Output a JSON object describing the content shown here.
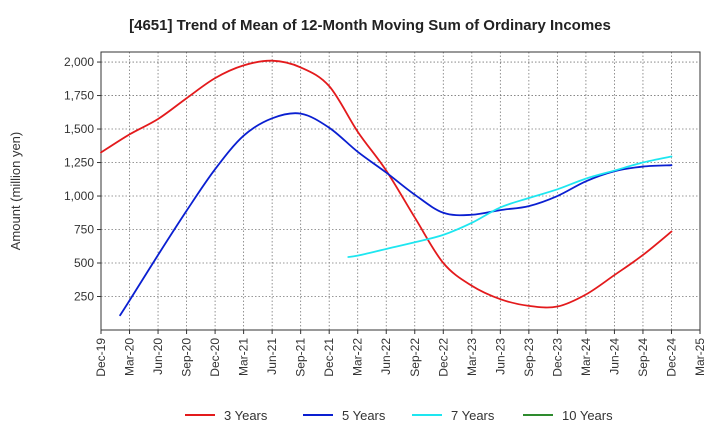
{
  "chart_data": {
    "type": "line",
    "title": "[4651]  Trend of Mean of 12-Month Moving Sum of Ordinary Incomes",
    "xlabel": "",
    "ylabel": "Amount (million yen)",
    "ylim": [
      0,
      2075
    ],
    "yticks": [
      250,
      500,
      750,
      1000,
      1250,
      1500,
      1750,
      2000
    ],
    "ytick_labels": [
      "250",
      "500",
      "750",
      "1,000",
      "1,250",
      "1,500",
      "1,750",
      "2,000"
    ],
    "x_tick_labels": [
      "Dec-19",
      "Mar-20",
      "Jun-20",
      "Sep-20",
      "Dec-20",
      "Mar-21",
      "Jun-21",
      "Sep-21",
      "Dec-21",
      "Mar-22",
      "Jun-22",
      "Sep-22",
      "Dec-22",
      "Mar-23",
      "Jun-23",
      "Sep-23",
      "Dec-23",
      "Mar-24",
      "Jun-24",
      "Sep-24",
      "Dec-24",
      "Mar-25"
    ],
    "x_unit": "quarters since Dec-19",
    "grid": true,
    "legend_position": "bottom",
    "series": [
      {
        "name": "3 Years",
        "color": "#e31a1c",
        "x": [
          0,
          1,
          2,
          3,
          4,
          5,
          6,
          7,
          8,
          9,
          10,
          11,
          12,
          13,
          14,
          15,
          16,
          17,
          18,
          19,
          20
        ],
        "values": [
          1325,
          1460,
          1575,
          1730,
          1880,
          1975,
          2010,
          1960,
          1820,
          1480,
          1190,
          840,
          500,
          330,
          230,
          180,
          175,
          265,
          410,
          560,
          735
        ]
      },
      {
        "name": "5 Years",
        "color": "#0a1fd1",
        "x": [
          0.67,
          1,
          2,
          3,
          4,
          5,
          6,
          7,
          8,
          9,
          10,
          11,
          12,
          13,
          14,
          15,
          16,
          17,
          18,
          19,
          20
        ],
        "values": [
          110,
          220,
          560,
          890,
          1200,
          1450,
          1580,
          1615,
          1510,
          1330,
          1175,
          1010,
          875,
          860,
          895,
          925,
          1000,
          1110,
          1185,
          1220,
          1230
        ]
      },
      {
        "name": "7 Years",
        "color": "#1ee6f0",
        "x": [
          8.67,
          9,
          10,
          11,
          12,
          13,
          14,
          15,
          16,
          17,
          18,
          19,
          20
        ],
        "values": [
          545,
          555,
          605,
          655,
          710,
          800,
          915,
          985,
          1050,
          1130,
          1190,
          1250,
          1295
        ]
      },
      {
        "name": "10 Years",
        "color": "#2e8b2e",
        "x": [],
        "values": []
      }
    ]
  }
}
